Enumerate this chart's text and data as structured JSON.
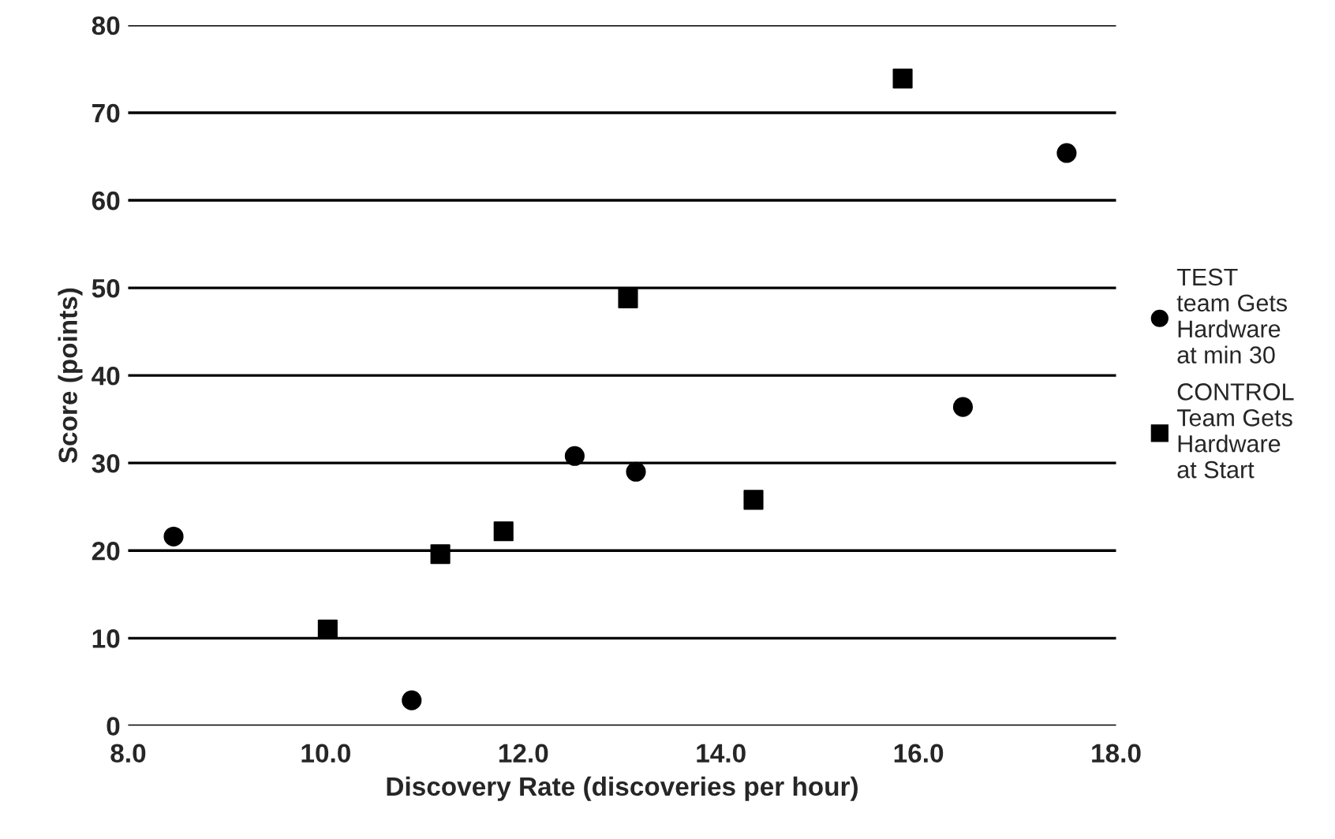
{
  "chart_data": {
    "type": "scatter",
    "xlabel": "Discovery Rate (discoveries per hour)",
    "ylabel": "Score (points)",
    "xlim": [
      8.0,
      18.0
    ],
    "xticks": [
      {
        "value": 8,
        "label": "8.0"
      },
      {
        "value": 10,
        "label": "10.0"
      },
      {
        "value": 12,
        "label": "12.0"
      },
      {
        "value": 14,
        "label": "14.0"
      },
      {
        "value": 16,
        "label": "16.0"
      },
      {
        "value": 18,
        "label": "18.0"
      }
    ],
    "ylim": [
      0,
      80
    ],
    "yticks": [
      0,
      10,
      20,
      30,
      40,
      50,
      60,
      70,
      80
    ],
    "grid": "y",
    "legend": "right",
    "series": [
      {
        "name": "TEST\nteam Gets\nHardware\nat min 30",
        "color": "#000000",
        "marker": "circle",
        "x": [
          8.46,
          10.87,
          12.52,
          13.14,
          16.45,
          17.5
        ],
        "values": [
          21.6,
          2.9,
          30.8,
          29.0,
          36.4,
          65.4
        ]
      },
      {
        "name": "CONTROL\nTeam Gets\nHardware\nat Start",
        "color": "#000000",
        "marker": "square",
        "x": [
          10.02,
          11.16,
          11.8,
          13.06,
          14.33,
          15.84
        ],
        "values": [
          11.0,
          19.6,
          22.2,
          48.8,
          25.8,
          73.9
        ]
      }
    ]
  }
}
